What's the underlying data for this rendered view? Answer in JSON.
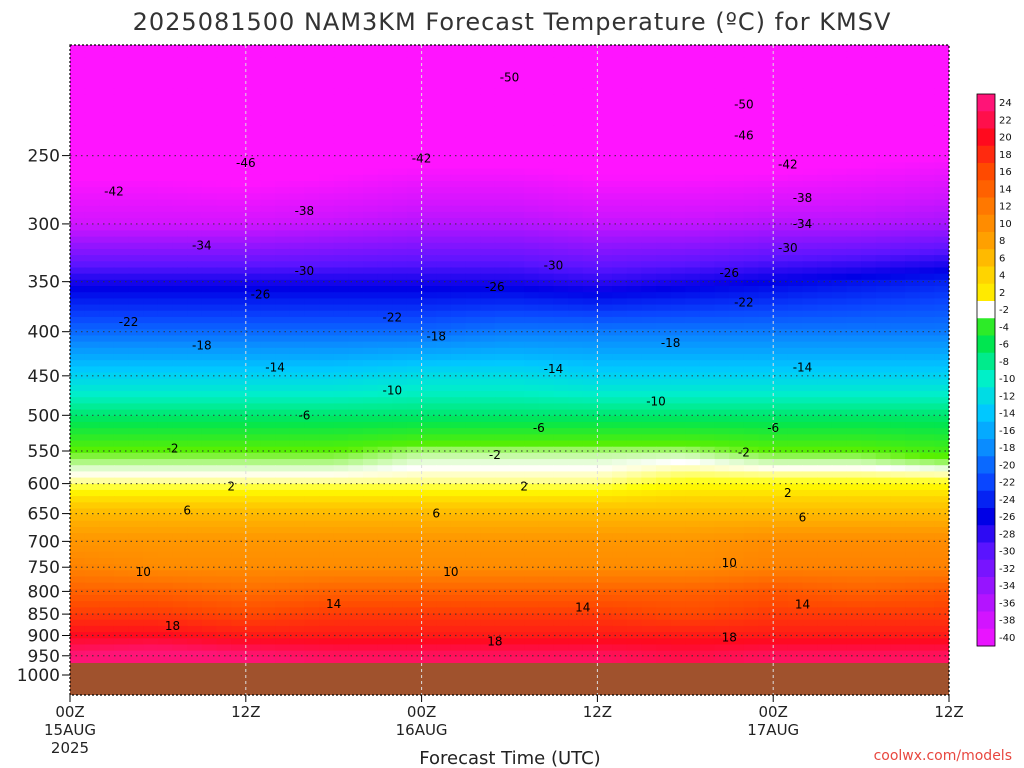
{
  "title": "2025081500 NAM3KM Forecast Temperature (ºC) for KMSV",
  "credit": {
    "text": "coolwx.com/models",
    "color": "#e8473f"
  },
  "xaxis": {
    "label": "Forecast Time (UTC)",
    "ticks": [
      {
        "hour": 0,
        "label": "00Z",
        "date": "15AUG",
        "year": "2025"
      },
      {
        "hour": 12,
        "label": "12Z",
        "date": "",
        "year": ""
      },
      {
        "hour": 24,
        "label": "00Z",
        "date": "16AUG",
        "year": ""
      },
      {
        "hour": 36,
        "label": "12Z",
        "date": "",
        "year": ""
      },
      {
        "hour": 48,
        "label": "00Z",
        "date": "17AUG",
        "year": ""
      },
      {
        "hour": 60,
        "label": "12Z",
        "date": "",
        "year": ""
      }
    ]
  },
  "yaxis": {
    "ticks": [
      "250",
      "300",
      "350",
      "400",
      "450",
      "500",
      "550",
      "600",
      "650",
      "700",
      "750",
      "800",
      "850",
      "900",
      "950",
      "1000"
    ]
  },
  "colorbar": {
    "labels": [
      "24",
      "22",
      "20",
      "18",
      "16",
      "14",
      "12",
      "10",
      "8",
      "6",
      "4",
      "2",
      "-2",
      "-4",
      "-6",
      "-8",
      "-10",
      "-12",
      "-14",
      "-16",
      "-18",
      "-20",
      "-22",
      "-24",
      "-26",
      "-28",
      "-30",
      "-32",
      "-34",
      "-36",
      "-38",
      "-40"
    ],
    "stops": [
      {
        "t": 24,
        "color": "#ff1477"
      },
      {
        "t": 20,
        "color": "#ff0a1e"
      },
      {
        "t": 16,
        "color": "#ff4a00"
      },
      {
        "t": 12,
        "color": "#ff7800"
      },
      {
        "t": 8,
        "color": "#ffa000"
      },
      {
        "t": 4,
        "color": "#ffd400"
      },
      {
        "t": 2,
        "color": "#ffff00"
      },
      {
        "t": 0,
        "color": "#ffffff"
      },
      {
        "t": -2,
        "color": "#5af000"
      },
      {
        "t": -6,
        "color": "#00e650"
      },
      {
        "t": -10,
        "color": "#00f0c8"
      },
      {
        "t": -14,
        "color": "#00c8ff"
      },
      {
        "t": -18,
        "color": "#0a8cff"
      },
      {
        "t": -22,
        "color": "#0a46ff"
      },
      {
        "t": -26,
        "color": "#0000e6"
      },
      {
        "t": -30,
        "color": "#5a14ff"
      },
      {
        "t": -34,
        "color": "#9614ff"
      },
      {
        "t": -38,
        "color": "#d214ff"
      },
      {
        "t": -42,
        "color": "#ff14ff"
      }
    ]
  },
  "chart_data": {
    "type": "heatmap",
    "title": "2025081500 NAM3KM Forecast Temperature (ºC) for KMSV",
    "xlabel": "Forecast Time (UTC)",
    "ylabel": "",
    "x_hours": [
      0,
      6,
      12,
      18,
      24,
      30,
      36,
      42,
      48,
      54,
      60
    ],
    "pressure_levels": [
      200,
      250,
      300,
      350,
      400,
      450,
      500,
      550,
      600,
      650,
      700,
      750,
      800,
      850,
      900,
      950
    ],
    "temperature": [
      [
        -52,
        -52,
        -51,
        -51,
        -51,
        -51,
        -51,
        -51,
        -51,
        -51,
        -52
      ],
      [
        -44,
        -44,
        -45,
        -44,
        -43,
        -43,
        -44,
        -44,
        -44,
        -43,
        -42
      ],
      [
        -38,
        -38,
        -38,
        -37,
        -36,
        -36,
        -37,
        -37,
        -36,
        -36,
        -35
      ],
      [
        -27,
        -27,
        -27,
        -27,
        -27,
        -27,
        -28,
        -27,
        -26,
        -25,
        -24
      ],
      [
        -20,
        -20,
        -20,
        -20,
        -20,
        -19,
        -19,
        -19,
        -19,
        -19,
        -19
      ],
      [
        -13,
        -13,
        -13,
        -13,
        -12,
        -12,
        -13,
        -13,
        -13,
        -13,
        -13
      ],
      [
        -7,
        -7,
        -7,
        -7,
        -7,
        -7,
        -7,
        -7,
        -7,
        -7,
        -7
      ],
      [
        -2,
        -2,
        -2,
        -2,
        -1,
        -1,
        -1,
        -1,
        -2,
        -2,
        -3
      ],
      [
        1,
        1,
        1,
        1,
        1,
        1,
        1,
        2,
        2,
        2,
        2
      ],
      [
        6,
        6,
        6,
        6,
        6,
        6,
        6,
        6,
        6,
        6,
        6
      ],
      [
        9,
        9,
        9,
        9,
        9,
        9,
        9,
        9,
        10,
        10,
        10
      ],
      [
        11,
        10,
        10,
        10,
        10,
        10,
        10,
        10,
        11,
        11,
        11
      ],
      [
        14,
        14,
        13,
        14,
        14,
        14,
        14,
        14,
        15,
        14,
        15
      ],
      [
        17,
        17,
        16,
        17,
        17,
        17,
        17,
        16,
        17,
        17,
        17
      ],
      [
        20,
        20,
        19,
        19,
        19,
        19,
        19,
        19,
        19,
        19,
        19
      ],
      [
        24,
        25,
        24,
        23,
        23,
        23,
        23,
        22,
        23,
        23,
        23
      ]
    ],
    "xlim": [
      0,
      60
    ],
    "ylim": [
      1000,
      200
    ],
    "grid": true,
    "contour_labels": [
      {
        "v": "-50",
        "h": 30,
        "p": 203
      },
      {
        "v": "-50",
        "h": 46,
        "p": 218
      },
      {
        "v": "-46",
        "h": 12,
        "p": 255
      },
      {
        "v": "-46",
        "h": 46,
        "p": 237
      },
      {
        "v": "-42",
        "h": 3,
        "p": 275
      },
      {
        "v": "-42",
        "h": 24,
        "p": 252
      },
      {
        "v": "-42",
        "h": 49,
        "p": 256
      },
      {
        "v": "-38",
        "h": 16,
        "p": 290
      },
      {
        "v": "-38",
        "h": 50,
        "p": 280
      },
      {
        "v": "-34",
        "h": 9,
        "p": 318
      },
      {
        "v": "-34",
        "h": 50,
        "p": 300
      },
      {
        "v": "-30",
        "h": 16,
        "p": 340
      },
      {
        "v": "-30",
        "h": 33,
        "p": 335
      },
      {
        "v": "-30",
        "h": 49,
        "p": 320
      },
      {
        "v": "-26",
        "h": 13,
        "p": 362
      },
      {
        "v": "-26",
        "h": 29,
        "p": 355
      },
      {
        "v": "-26",
        "h": 45,
        "p": 342
      },
      {
        "v": "-22",
        "h": 4,
        "p": 390
      },
      {
        "v": "-22",
        "h": 22,
        "p": 385
      },
      {
        "v": "-22",
        "h": 46,
        "p": 370
      },
      {
        "v": "-18",
        "h": 9,
        "p": 415
      },
      {
        "v": "-18",
        "h": 25,
        "p": 405
      },
      {
        "v": "-18",
        "h": 41,
        "p": 412
      },
      {
        "v": "-14",
        "h": 14,
        "p": 440
      },
      {
        "v": "-14",
        "h": 33,
        "p": 442
      },
      {
        "v": "-14",
        "h": 50,
        "p": 440
      },
      {
        "v": "-10",
        "h": 22,
        "p": 468
      },
      {
        "v": "-10",
        "h": 40,
        "p": 482
      },
      {
        "v": "-6",
        "h": 16,
        "p": 500
      },
      {
        "v": "-6",
        "h": 32,
        "p": 517
      },
      {
        "v": "-6",
        "h": 48,
        "p": 517
      },
      {
        "v": "-2",
        "h": 7,
        "p": 546
      },
      {
        "v": "-2",
        "h": 29,
        "p": 556
      },
      {
        "v": "-2",
        "h": 46,
        "p": 552
      },
      {
        "v": "2",
        "h": 11,
        "p": 605
      },
      {
        "v": "2",
        "h": 31,
        "p": 605
      },
      {
        "v": "2",
        "h": 49,
        "p": 615
      },
      {
        "v": "6",
        "h": 8,
        "p": 645
      },
      {
        "v": "6",
        "h": 25,
        "p": 650
      },
      {
        "v": "6",
        "h": 50,
        "p": 657
      },
      {
        "v": "10",
        "h": 5,
        "p": 760
      },
      {
        "v": "10",
        "h": 26,
        "p": 760
      },
      {
        "v": "10",
        "h": 45,
        "p": 742
      },
      {
        "v": "14",
        "h": 18,
        "p": 827
      },
      {
        "v": "14",
        "h": 35,
        "p": 835
      },
      {
        "v": "14",
        "h": 50,
        "p": 828
      },
      {
        "v": "18",
        "h": 7,
        "p": 877
      },
      {
        "v": "18",
        "h": 29,
        "p": 915
      },
      {
        "v": "18",
        "h": 45,
        "p": 905
      }
    ]
  }
}
